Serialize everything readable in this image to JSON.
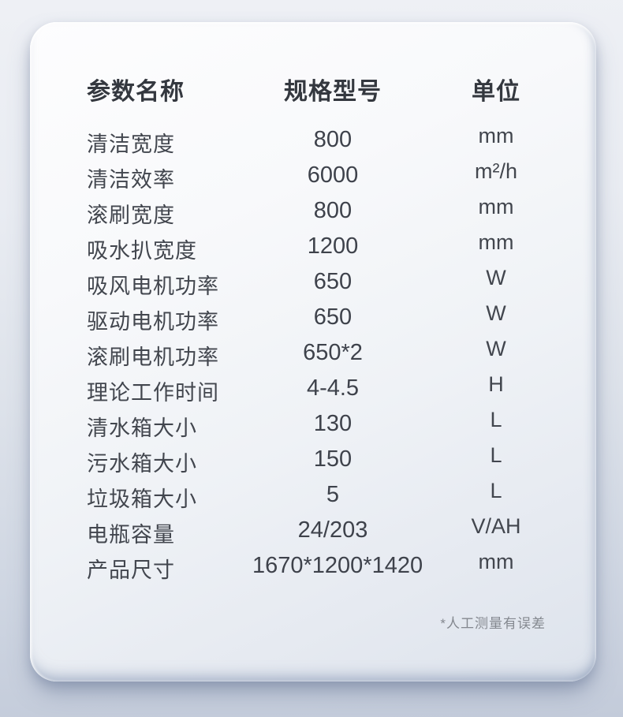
{
  "table": {
    "headers": {
      "name": "参数名称",
      "spec": "规格型号",
      "unit": "单位"
    },
    "rows": [
      {
        "name": "清洁宽度",
        "spec": "800",
        "unit": "mm"
      },
      {
        "name": "清洁效率",
        "spec": "6000",
        "unit": "m²/h"
      },
      {
        "name": "滚刷宽度",
        "spec": "800",
        "unit": "mm"
      },
      {
        "name": "吸水扒宽度",
        "spec": "1200",
        "unit": "mm"
      },
      {
        "name": "吸风电机功率",
        "spec": "650",
        "unit": "W"
      },
      {
        "name": "驱动电机功率",
        "spec": "650",
        "unit": "W"
      },
      {
        "name": "滚刷电机功率",
        "spec": "650*2",
        "unit": "W"
      },
      {
        "name": "理论工作时间",
        "spec": "4-4.5",
        "unit": "H"
      },
      {
        "name": "清水箱大小",
        "spec": "130",
        "unit": "L"
      },
      {
        "name": "污水箱大小",
        "spec": "150",
        "unit": "L"
      },
      {
        "name": "垃圾箱大小",
        "spec": "5",
        "unit": "L"
      },
      {
        "name": "电瓶容量",
        "spec": "24/203",
        "unit": "V/AH"
      },
      {
        "name": "产品尺寸",
        "spec": "1670*1200*1420",
        "unit": "mm"
      }
    ],
    "footnote": "*人工测量有误差"
  },
  "colors": {
    "text_label": "#42464e",
    "text_header": "#34383f",
    "text_footnote": "#84888f",
    "card_top": "#fdfdfe",
    "card_bottom": "#dde3ec",
    "background_top": "#eef0f5",
    "background_bottom": "#c3cbda"
  }
}
